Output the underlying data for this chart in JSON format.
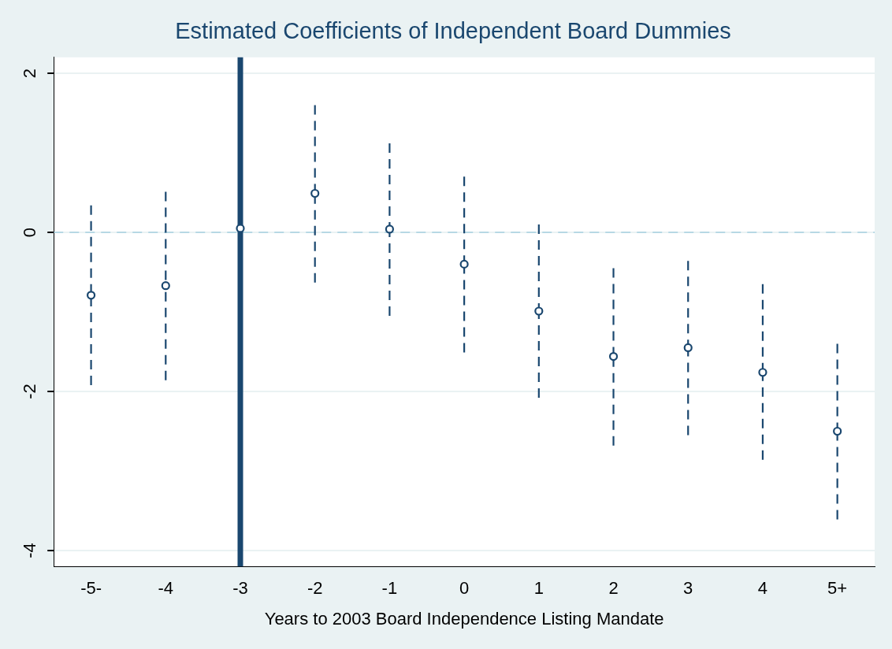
{
  "chart_data": {
    "type": "scatter",
    "title": "Estimated Coefficients of Independent Board Dummies",
    "xlabel": "Years to 2003 Board Independence Listing Mandate",
    "categories": [
      "-5-",
      "-4",
      "-3",
      "-2",
      "-1",
      "0",
      "1",
      "2",
      "3",
      "4",
      "5+"
    ],
    "series": [
      {
        "color": "#1a476f",
        "values": [
          -0.79,
          -0.67,
          0.05,
          0.49,
          0.04,
          -0.4,
          -0.99,
          -1.56,
          -1.45,
          -1.76,
          -2.5
        ],
        "errors": [
          [
            -1.92,
            0.34
          ],
          [
            -1.86,
            0.51
          ],
          null,
          [
            -0.63,
            1.6
          ],
          [
            -1.05,
            1.12
          ],
          [
            -1.51,
            0.7
          ],
          [
            -2.08,
            0.1
          ],
          [
            -2.68,
            -0.45
          ],
          [
            -2.55,
            -0.36
          ],
          [
            -2.86,
            -0.65
          ],
          [
            -3.61,
            -1.4
          ]
        ]
      }
    ],
    "ylim": [
      -4.2,
      2.2
    ],
    "yticks": [
      -4,
      -2,
      0,
      2
    ],
    "grid": "y",
    "marker": "circle",
    "legend": false,
    "ref_lines": [
      {
        "axis": "y",
        "value": 0,
        "color": "#a6cfe0",
        "line_style": "dashed"
      },
      {
        "axis": "x",
        "value": "-3",
        "color": "#1a476f",
        "line_style": "solid"
      }
    ]
  }
}
